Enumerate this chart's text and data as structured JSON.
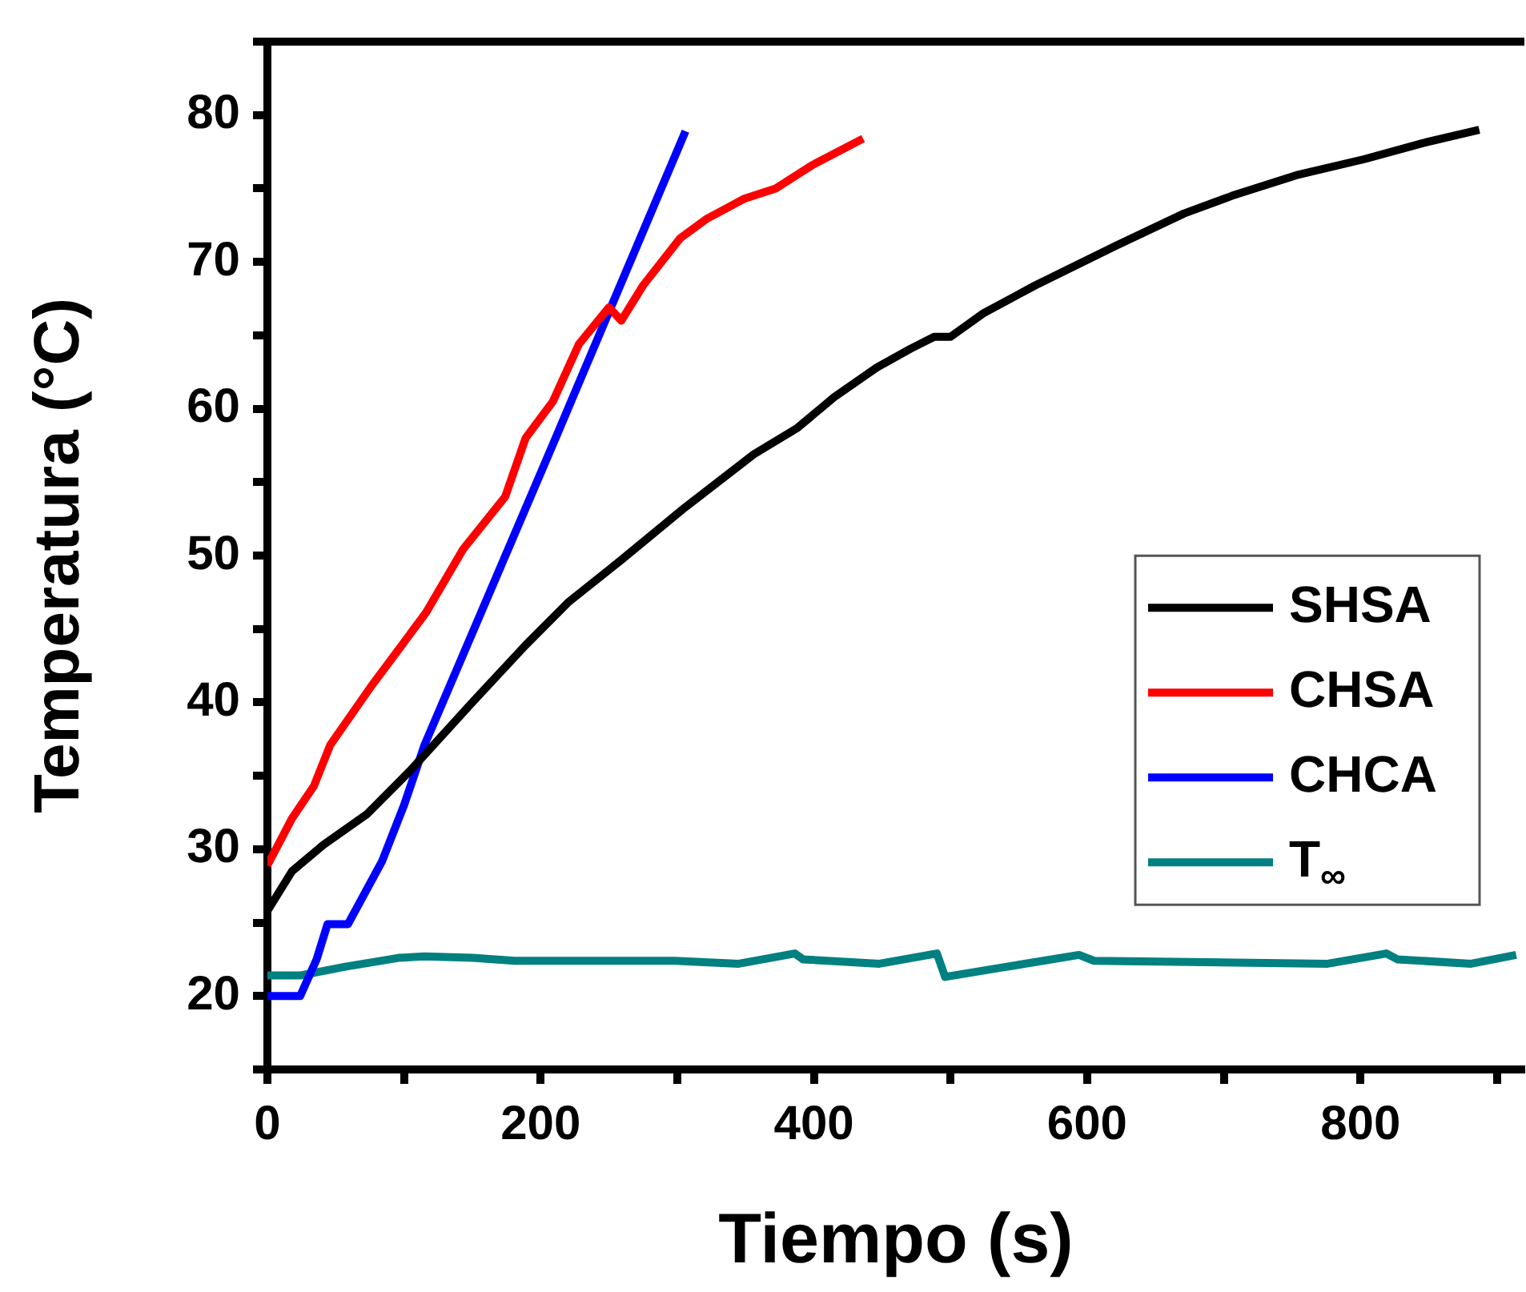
{
  "chart_data": {
    "type": "line",
    "xlabel": "Tiempo (s)",
    "ylabel": "Temperatura (°C)",
    "xlim": [
      0,
      920
    ],
    "ylim": [
      15,
      85
    ],
    "xticks": [
      0,
      {
        "value": 100,
        "label": null
      },
      200,
      {
        "value": 300,
        "label": null
      },
      400,
      {
        "value": 500,
        "label": null
      },
      600,
      {
        "value": 700,
        "label": null
      },
      800,
      {
        "value": 900,
        "label": null
      }
    ],
    "yticks": [
      {
        "value": 15,
        "label": null
      },
      20,
      {
        "value": 25,
        "label": null
      },
      30,
      {
        "value": 35,
        "label": null
      },
      40,
      {
        "value": 45,
        "label": null
      },
      50,
      {
        "value": 55,
        "label": null
      },
      60,
      {
        "value": 65,
        "label": null
      },
      70,
      {
        "value": 75,
        "label": null
      },
      80,
      {
        "value": 85,
        "label": null
      }
    ],
    "grid": false,
    "legend": "right",
    "marker": "none",
    "line_style": "solid",
    "series": [
      {
        "name": "SHSA",
        "color": "#000000",
        "x": [
          0,
          18,
          41,
          73,
          104,
          150,
          189,
          220,
          259,
          306,
          356,
          388,
          415,
          446,
          471,
          488,
          500,
          524,
          562,
          621,
          671,
          706,
          753,
          803,
          846,
          887
        ],
        "values": [
          25.8,
          28.5,
          30.3,
          32.4,
          35.3,
          40.0,
          43.9,
          46.8,
          49.7,
          53.3,
          56.9,
          58.7,
          60.8,
          62.8,
          64.1,
          64.9,
          64.9,
          66.5,
          68.4,
          71.1,
          73.3,
          74.5,
          75.9,
          77.0,
          78.1,
          79.0
        ]
      },
      {
        "name": "CHSA",
        "color": "#ff0000",
        "x": [
          0,
          18,
          34,
          46,
          76,
          96,
          116,
          143,
          174,
          189,
          209,
          228,
          250,
          259,
          275,
          302,
          321,
          349,
          372,
          399,
          436
        ],
        "values": [
          28.9,
          32.1,
          34.3,
          37.1,
          41.1,
          43.6,
          46.1,
          50.4,
          54.0,
          58.0,
          60.5,
          64.4,
          66.9,
          66.0,
          68.4,
          71.6,
          72.9,
          74.3,
          75.0,
          76.6,
          78.4
        ]
      },
      {
        "name": "CHCA",
        "color": "#0000ff",
        "x": [
          0,
          24,
          36,
          44,
          59,
          84,
          100,
          115,
          210,
          306
        ],
        "values": [
          20.0,
          20.0,
          22.5,
          24.9,
          24.9,
          29.2,
          33.0,
          37.1,
          57.8,
          78.9
        ]
      },
      {
        "name": "T$_{∞}$",
        "color": "#008080",
        "x": [
          0,
          24,
          57,
          96,
          115,
          150,
          181,
          298,
          345,
          386,
          392,
          448,
          490,
          496,
          535,
          594,
          605,
          776,
          819,
          827,
          881,
          914
        ],
        "values": [
          21.4,
          21.4,
          22.0,
          22.6,
          22.7,
          22.6,
          22.4,
          22.4,
          22.2,
          22.9,
          22.5,
          22.2,
          22.9,
          21.3,
          21.9,
          22.8,
          22.4,
          22.2,
          22.9,
          22.5,
          22.2,
          22.8
        ]
      }
    ]
  }
}
